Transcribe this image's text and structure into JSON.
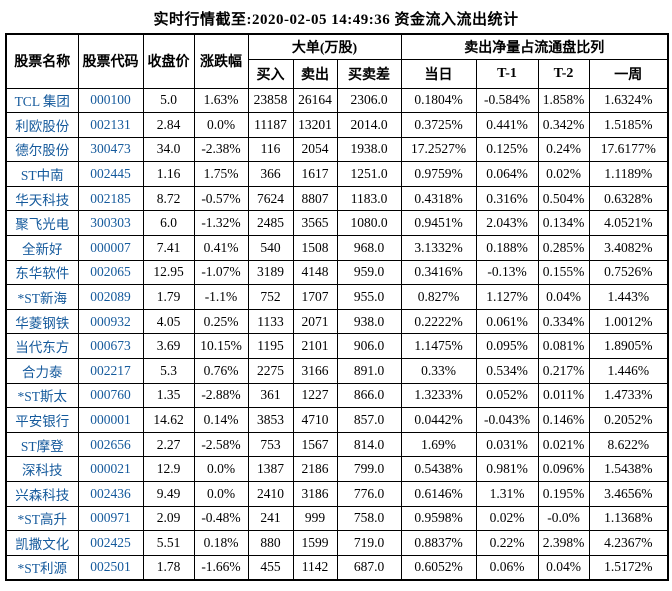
{
  "title": "实时行情截至:2020-02-05 14:49:36 资金流入流出统计",
  "colors": {
    "background": "#ffffff",
    "text": "#000000",
    "border": "#000000",
    "stock_link_blue": "#155a9c"
  },
  "chart_data": {
    "type": "table",
    "title": "实时行情截至:2020-02-05 14:49:36 资金流入流出统计",
    "column_groups": [
      {
        "label": "大单(万股)",
        "span": 3
      },
      {
        "label": "卖出净量占流通盘比列",
        "span": 4
      }
    ],
    "columns": [
      "股票名称",
      "股票代码",
      "收盘价",
      "涨跌幅",
      "买入",
      "卖出",
      "买卖差",
      "当日",
      "T-1",
      "T-2",
      "一周"
    ],
    "rows": [
      [
        "TCL 集团",
        "000100",
        "5.0",
        "1.63%",
        "23858",
        "26164",
        "2306.0",
        "0.1804%",
        "-0.584%",
        "1.858%",
        "1.6324%"
      ],
      [
        "利欧股份",
        "002131",
        "2.84",
        "0.0%",
        "11187",
        "13201",
        "2014.0",
        "0.3725%",
        "0.441%",
        "0.342%",
        "1.5185%"
      ],
      [
        "德尔股份",
        "300473",
        "34.0",
        "-2.38%",
        "116",
        "2054",
        "1938.0",
        "17.2527%",
        "0.125%",
        "0.24%",
        "17.6177%"
      ],
      [
        "ST中南",
        "002445",
        "1.16",
        "1.75%",
        "366",
        "1617",
        "1251.0",
        "0.9759%",
        "0.064%",
        "0.02%",
        "1.1189%"
      ],
      [
        "华天科技",
        "002185",
        "8.72",
        "-0.57%",
        "7624",
        "8807",
        "1183.0",
        "0.4318%",
        "0.316%",
        "0.504%",
        "0.6328%"
      ],
      [
        "聚飞光电",
        "300303",
        "6.0",
        "-1.32%",
        "2485",
        "3565",
        "1080.0",
        "0.9451%",
        "2.043%",
        "0.134%",
        "4.0521%"
      ],
      [
        "全新好",
        "000007",
        "7.41",
        "0.41%",
        "540",
        "1508",
        "968.0",
        "3.1332%",
        "0.188%",
        "0.285%",
        "3.4082%"
      ],
      [
        "东华软件",
        "002065",
        "12.95",
        "-1.07%",
        "3189",
        "4148",
        "959.0",
        "0.3416%",
        "-0.13%",
        "0.155%",
        "0.7526%"
      ],
      [
        "*ST新海",
        "002089",
        "1.79",
        "-1.1%",
        "752",
        "1707",
        "955.0",
        "0.827%",
        "1.127%",
        "0.04%",
        "1.443%"
      ],
      [
        "华菱钢铁",
        "000932",
        "4.05",
        "0.25%",
        "1133",
        "2071",
        "938.0",
        "0.2222%",
        "0.061%",
        "0.334%",
        "1.0012%"
      ],
      [
        "当代东方",
        "000673",
        "3.69",
        "10.15%",
        "1195",
        "2101",
        "906.0",
        "1.1475%",
        "0.095%",
        "0.081%",
        "1.8905%"
      ],
      [
        "合力泰",
        "002217",
        "5.3",
        "0.76%",
        "2275",
        "3166",
        "891.0",
        "0.33%",
        "0.534%",
        "0.217%",
        "1.446%"
      ],
      [
        "*ST斯太",
        "000760",
        "1.35",
        "-2.88%",
        "361",
        "1227",
        "866.0",
        "1.3233%",
        "0.052%",
        "0.011%",
        "1.4733%"
      ],
      [
        "平安银行",
        "000001",
        "14.62",
        "0.14%",
        "3853",
        "4710",
        "857.0",
        "0.0442%",
        "-0.043%",
        "0.146%",
        "0.2052%"
      ],
      [
        "ST摩登",
        "002656",
        "2.27",
        "-2.58%",
        "753",
        "1567",
        "814.0",
        "1.69%",
        "0.031%",
        "0.021%",
        "8.622%"
      ],
      [
        "深科技",
        "000021",
        "12.9",
        "0.0%",
        "1387",
        "2186",
        "799.0",
        "0.5438%",
        "0.981%",
        "0.096%",
        "1.5438%"
      ],
      [
        "兴森科技",
        "002436",
        "9.49",
        "0.0%",
        "2410",
        "3186",
        "776.0",
        "0.6146%",
        "1.31%",
        "0.195%",
        "3.4656%"
      ],
      [
        "*ST高升",
        "000971",
        "2.09",
        "-0.48%",
        "241",
        "999",
        "758.0",
        "0.9598%",
        "0.02%",
        "-0.0%",
        "1.1368%"
      ],
      [
        "凯撒文化",
        "002425",
        "5.51",
        "0.18%",
        "880",
        "1599",
        "719.0",
        "0.8837%",
        "0.22%",
        "2.398%",
        "4.2367%"
      ],
      [
        "*ST利源",
        "002501",
        "1.78",
        "-1.66%",
        "455",
        "1142",
        "687.0",
        "0.6052%",
        "0.06%",
        "0.04%",
        "1.5172%"
      ]
    ]
  }
}
